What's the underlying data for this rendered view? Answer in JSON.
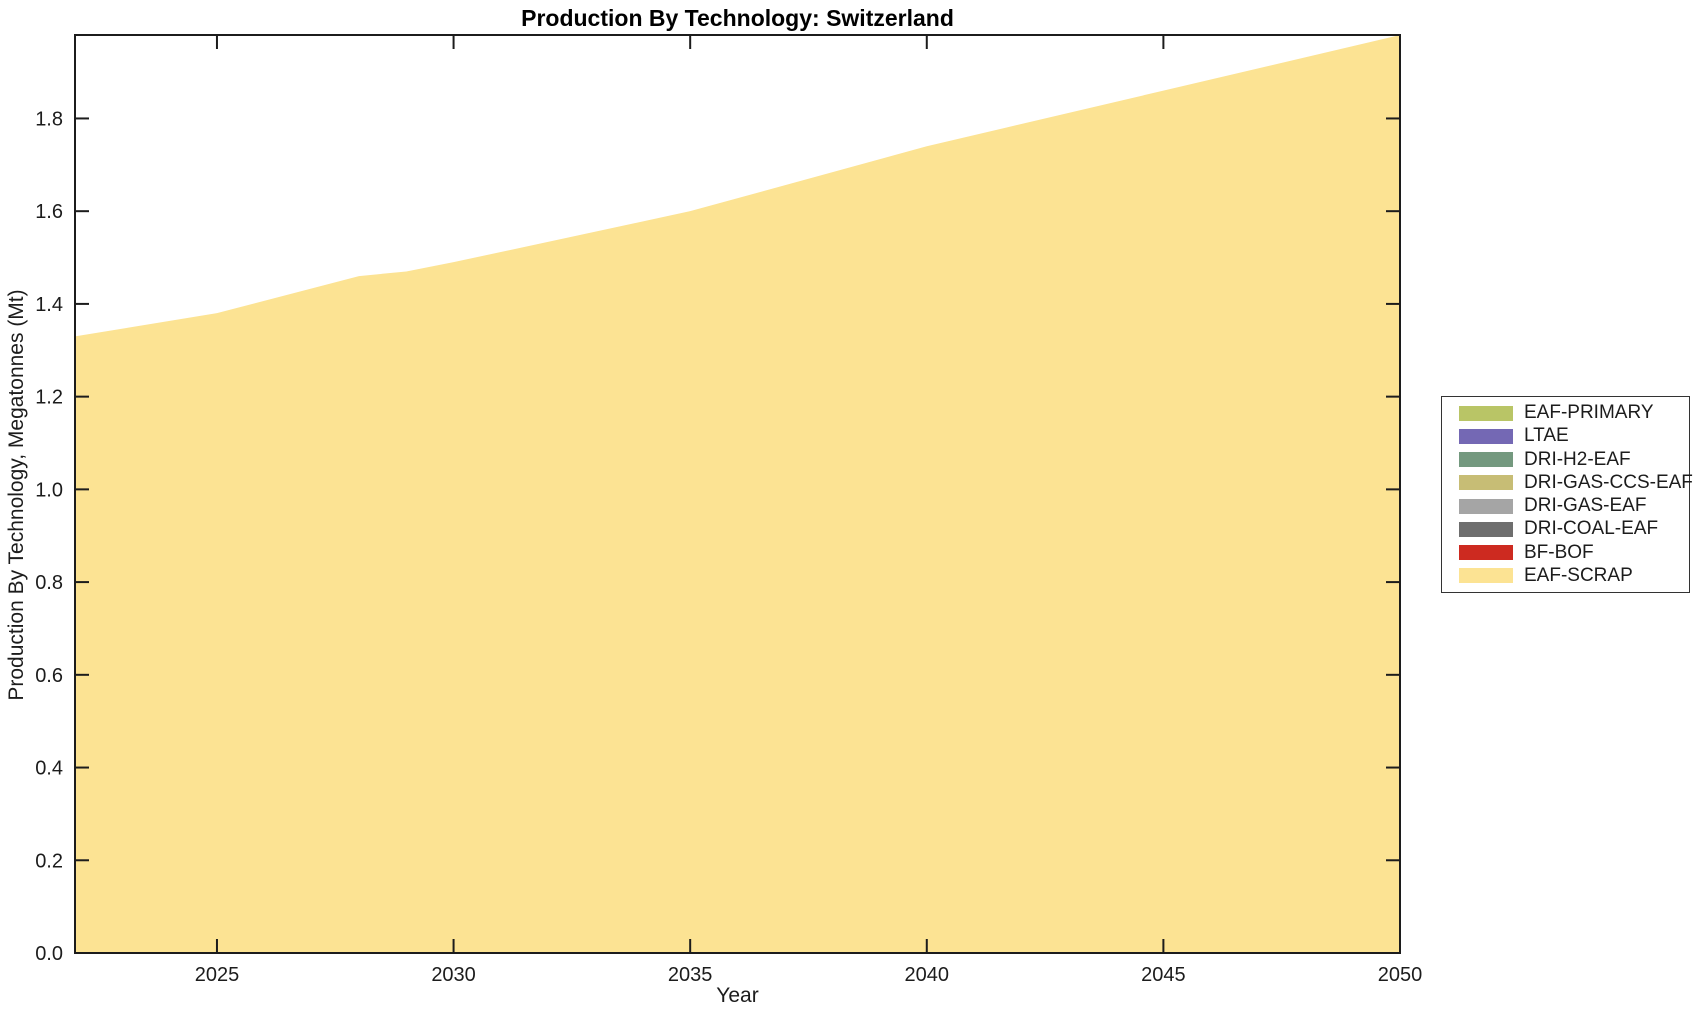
{
  "chart_data": {
    "type": "area",
    "stacked": true,
    "title": "Production By Technology: Switzerland",
    "xlabel": "Year",
    "ylabel": "Production By Technology, Megatonnes (Mt)",
    "x": [
      2022,
      2025,
      2028,
      2029,
      2030,
      2035,
      2040,
      2045,
      2050
    ],
    "series": [
      {
        "name": "EAF-SCRAP",
        "color": "#FCE393",
        "values": [
          1.33,
          1.38,
          1.46,
          1.47,
          1.49,
          1.6,
          1.74,
          1.86,
          1.98
        ]
      },
      {
        "name": "BF-BOF",
        "color": "#CD2A20",
        "values": [
          0,
          0,
          0,
          0,
          0,
          0,
          0,
          0,
          0
        ]
      },
      {
        "name": "DRI-COAL-EAF",
        "color": "#6E6E6E",
        "values": [
          0,
          0,
          0,
          0,
          0,
          0,
          0,
          0,
          0
        ]
      },
      {
        "name": "DRI-GAS-EAF",
        "color": "#A5A5A5",
        "values": [
          0,
          0,
          0,
          0,
          0,
          0,
          0,
          0,
          0
        ]
      },
      {
        "name": "DRI-GAS-CCS-EAF",
        "color": "#C7BD75",
        "values": [
          0,
          0,
          0,
          0,
          0,
          0,
          0,
          0,
          0
        ]
      },
      {
        "name": "DRI-H2-EAF",
        "color": "#74997F",
        "values": [
          0,
          0,
          0,
          0,
          0,
          0,
          0,
          0,
          0
        ]
      },
      {
        "name": "LTAE",
        "color": "#7468B4",
        "values": [
          0,
          0,
          0,
          0,
          0,
          0,
          0,
          0,
          0
        ]
      },
      {
        "name": "EAF-PRIMARY",
        "color": "#B9C566",
        "values": [
          0,
          0,
          0,
          0,
          0,
          0,
          0,
          0,
          0
        ]
      }
    ],
    "xlim": [
      2022,
      2050
    ],
    "ylim": [
      0,
      1.98
    ],
    "x_ticks": [
      2025,
      2030,
      2035,
      2040,
      2045,
      2050
    ],
    "y_ticks": [
      0.0,
      0.2,
      0.4,
      0.6,
      0.8,
      1.0,
      1.2,
      1.4,
      1.6,
      1.8
    ],
    "grid": false,
    "legend_position": "outside-right",
    "legend_order": [
      "EAF-PRIMARY",
      "LTAE",
      "DRI-H2-EAF",
      "DRI-GAS-CCS-EAF",
      "DRI-GAS-EAF",
      "DRI-COAL-EAF",
      "BF-BOF",
      "EAF-SCRAP"
    ],
    "axis_color": "#1c1c1c"
  }
}
